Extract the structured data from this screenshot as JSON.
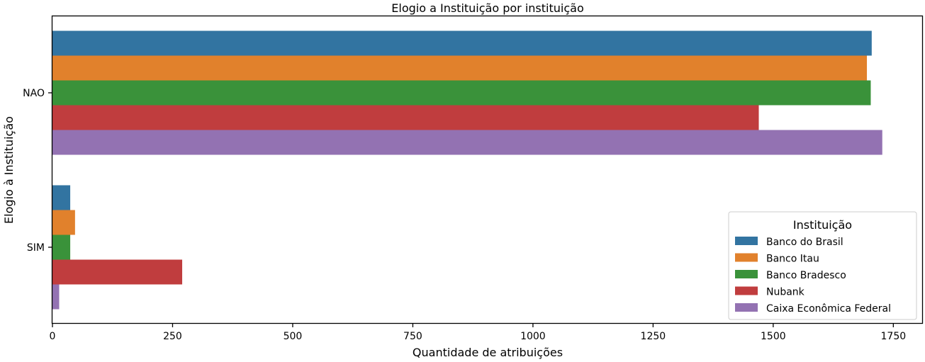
{
  "chart_data": {
    "type": "bar",
    "orientation": "horizontal",
    "title": "Elogio a Instituição por instituição",
    "xlabel": "Quantidade de atribuições",
    "ylabel": "Elogio à Instituição",
    "xlim": [
      0,
      1810
    ],
    "xticks": [
      0,
      250,
      500,
      750,
      1000,
      1250,
      1500,
      1750
    ],
    "categories": [
      "NAO",
      "SIM"
    ],
    "series": [
      {
        "name": "Banco do Brasil",
        "color": "#3274a1",
        "values": [
          1705,
          37
        ]
      },
      {
        "name": "Banco Itau",
        "color": "#e1812c",
        "values": [
          1695,
          47
        ]
      },
      {
        "name": "Banco Bradesco",
        "color": "#3a923a",
        "values": [
          1703,
          37
        ]
      },
      {
        "name": "Nubank",
        "color": "#c03d3e",
        "values": [
          1470,
          270
        ]
      },
      {
        "name": "Caixa Econômica Federal",
        "color": "#9372b2",
        "values": [
          1727,
          14
        ]
      }
    ],
    "legend": {
      "title": "Instituição",
      "position": "lower-right"
    },
    "grid": false
  }
}
